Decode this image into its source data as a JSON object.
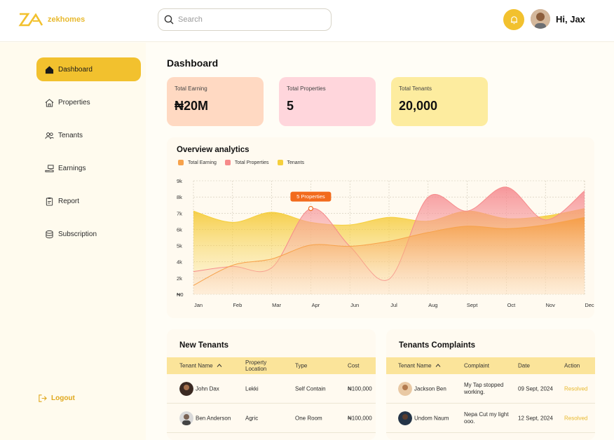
{
  "header": {
    "brand": "zekhomes",
    "search_placeholder": "Search",
    "greeting": "Hi, Jax"
  },
  "sidebar": {
    "items": [
      {
        "label": "Dashboard",
        "icon": "home-icon",
        "active": true
      },
      {
        "label": "Properties",
        "icon": "building-icon",
        "active": false
      },
      {
        "label": "Tenants",
        "icon": "users-icon",
        "active": false
      },
      {
        "label": "Earnings",
        "icon": "money-hand-icon",
        "active": false
      },
      {
        "label": "Report",
        "icon": "clipboard-icon",
        "active": false
      },
      {
        "label": "Subscription",
        "icon": "coins-icon",
        "active": false
      }
    ],
    "logout_label": "Logout"
  },
  "main": {
    "title": "Dashboard",
    "cards": [
      {
        "label": "Total Earning",
        "value": "₦20M",
        "color": "#ffd9c2"
      },
      {
        "label": "Total Properties",
        "value": "5",
        "color": "#ffd6dc"
      },
      {
        "label": "Total Tenants",
        "value": "20,000",
        "color": "#fdec9f"
      }
    ]
  },
  "analytics": {
    "title": "Overview analytics",
    "tooltip": "5 Properties"
  },
  "chart_data": {
    "type": "area",
    "categories": [
      "Jan",
      "Feb",
      "Mar",
      "Apr",
      "Jun",
      "Jul",
      "Aug",
      "Sept",
      "Oct",
      "Nov",
      "Dec"
    ],
    "y_tick_labels": [
      "₦0",
      "2k",
      "4k",
      "5k",
      "6k",
      "7k",
      "8k",
      "9k"
    ],
    "grid": true,
    "legend_position": "top-left",
    "series": [
      {
        "name": "Total Earning",
        "color": "#f7a24b",
        "values": [
          700,
          2300,
          2800,
          3900,
          3800,
          4200,
          4900,
          5400,
          5200,
          5500,
          6100
        ]
      },
      {
        "name": "Total Properties",
        "color": "#f68b8b",
        "values": [
          1800,
          2200,
          2100,
          6800,
          3800,
          1200,
          7700,
          6600,
          8500,
          5900,
          8200
        ]
      },
      {
        "name": "Tenants",
        "color": "#f5cf3c",
        "values": [
          6600,
          5700,
          6500,
          5700,
          5500,
          6100,
          5800,
          6600,
          6000,
          6200,
          6800
        ]
      }
    ]
  },
  "new_tenants": {
    "title": "New Tenants",
    "columns": [
      "Tenant Name",
      "Property Location",
      "Type",
      "Cost"
    ],
    "rows": [
      {
        "name": "John Dax",
        "location": "Lekki",
        "type": "Self Contain",
        "cost": "₦100,000"
      },
      {
        "name": "Ben Anderson",
        "location": "Agric",
        "type": "One Room",
        "cost": "₦100,000"
      }
    ]
  },
  "complaints": {
    "title": "Tenants Complaints",
    "columns": [
      "Tenant Name",
      "Complaint",
      "Date",
      "Action"
    ],
    "rows": [
      {
        "name": "Jackson Ben",
        "complaint": "My Tap stopped working.",
        "date": "09 Sept, 2024",
        "action": "Resolved"
      },
      {
        "name": "Undom Naum",
        "complaint": "Nepa Cut my light ooo.",
        "date": "12 Sept, 2024",
        "action": "Resolved"
      }
    ]
  }
}
